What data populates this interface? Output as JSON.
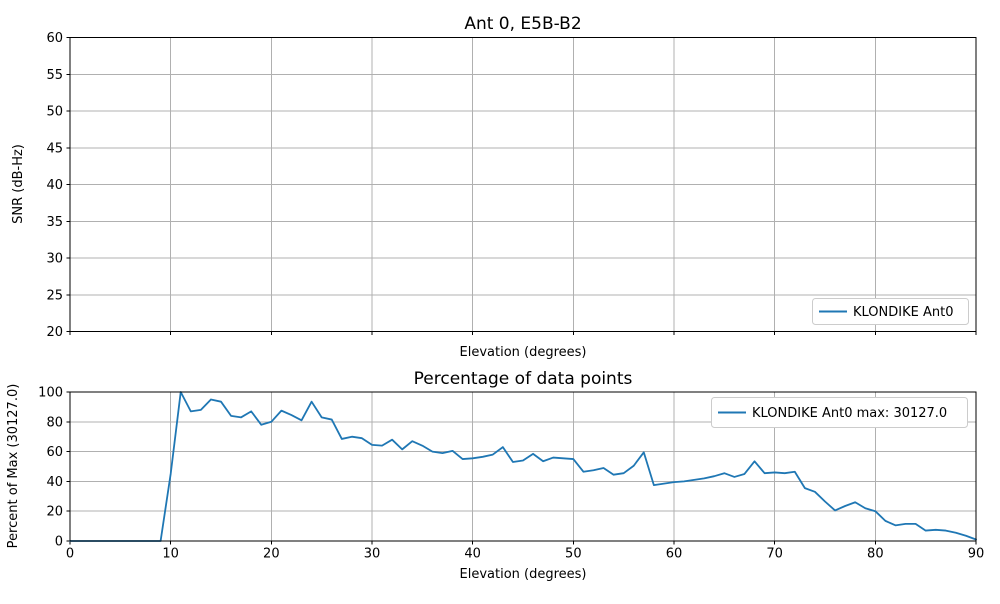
{
  "figure": {
    "background_color": "#ffffff",
    "line_color": "#1f77b4",
    "grid_color": "#b0b0b0"
  },
  "chart_data": [
    {
      "type": "line",
      "title": "Ant 0, E5B-B2",
      "xlabel": "Elevation (degrees)",
      "ylabel": "SNR (dB-Hz)",
      "xlim": [
        0,
        90
      ],
      "ylim": [
        20,
        60
      ],
      "x_ticks": [
        0,
        10,
        20,
        30,
        40,
        50,
        60,
        70,
        80,
        90
      ],
      "x_tick_labels_visible": false,
      "y_ticks": [
        20,
        25,
        30,
        35,
        40,
        45,
        50,
        55,
        60
      ],
      "grid": true,
      "legend": {
        "label": "KLONDIKE Ant0",
        "position": "lower right"
      },
      "series": [
        {
          "name": "KLONDIKE Ant0",
          "color": "#1f77b4",
          "x": [],
          "values": []
        }
      ]
    },
    {
      "type": "line",
      "title": "Percentage of data points",
      "xlabel": "Elevation (degrees)",
      "ylabel": "Percent of Max (30127.0)",
      "max_value": 30127.0,
      "xlim": [
        0,
        90
      ],
      "ylim": [
        0,
        100
      ],
      "x_ticks": [
        0,
        10,
        20,
        30,
        40,
        50,
        60,
        70,
        80,
        90
      ],
      "x_tick_labels_visible": true,
      "y_ticks": [
        0,
        20,
        40,
        60,
        80,
        100
      ],
      "grid": true,
      "legend": {
        "label": "KLONDIKE Ant0 max: 30127.0",
        "position": "upper right"
      },
      "series": [
        {
          "name": "KLONDIKE Ant0",
          "color": "#1f77b4",
          "x": [
            0,
            1,
            2,
            3,
            4,
            5,
            6,
            7,
            8,
            9,
            10,
            11,
            12,
            13,
            14,
            15,
            16,
            17,
            18,
            19,
            20,
            21,
            22,
            23,
            24,
            25,
            26,
            27,
            28,
            29,
            30,
            31,
            32,
            33,
            34,
            35,
            36,
            37,
            38,
            39,
            40,
            41,
            42,
            43,
            44,
            45,
            46,
            47,
            48,
            49,
            50,
            51,
            52,
            53,
            54,
            55,
            56,
            57,
            58,
            59,
            60,
            61,
            62,
            63,
            64,
            65,
            66,
            67,
            68,
            69,
            70,
            71,
            72,
            73,
            74,
            75,
            76,
            77,
            78,
            79,
            80,
            81,
            82,
            83,
            84,
            85,
            86,
            87,
            88,
            89,
            90
          ],
          "values": [
            0,
            0,
            0,
            0,
            0,
            0,
            0,
            0,
            0,
            0,
            45,
            100,
            87,
            88,
            95,
            93.5,
            84,
            83,
            87,
            78,
            80,
            87.5,
            84.5,
            81,
            93.5,
            83,
            81.5,
            68.5,
            70,
            69,
            64.5,
            64,
            68,
            61.5,
            67,
            64,
            60,
            59,
            60.5,
            55,
            55.5,
            56.5,
            58,
            63,
            53,
            54,
            58.5,
            53.5,
            56,
            55.5,
            55,
            46.5,
            47.5,
            49,
            44.5,
            45.5,
            50.5,
            59.5,
            37.5,
            38.5,
            39.5,
            40,
            41,
            42,
            43.5,
            45.5,
            43,
            45,
            53.5,
            45.5,
            46,
            45.5,
            46.5,
            35.5,
            33,
            26.5,
            20.5,
            23.5,
            26,
            22,
            20,
            13.5,
            10.5,
            11.5,
            11.5,
            7,
            7.5,
            7,
            5.5,
            3.5,
            1
          ]
        }
      ]
    }
  ]
}
